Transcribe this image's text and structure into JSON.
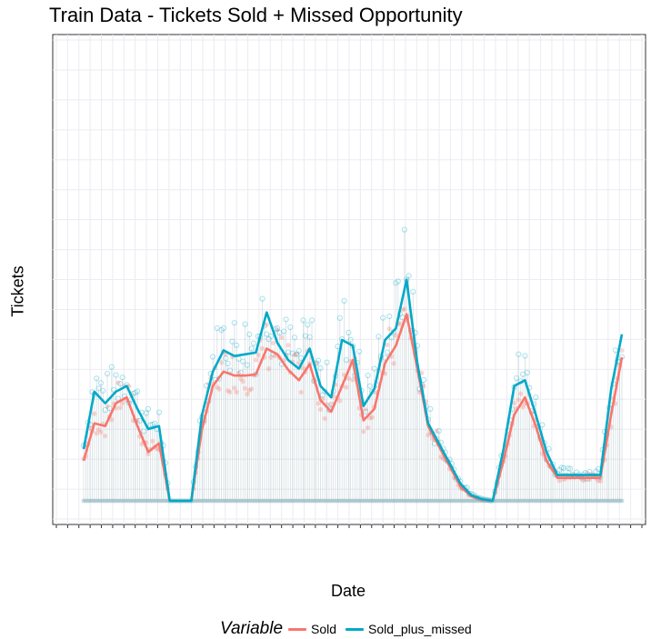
{
  "chart_data": {
    "type": "line",
    "title": "Train Data - Tickets Sold + Missed Opportunity",
    "xlabel": "Date",
    "ylabel": "Tickets",
    "x_tick_labels_shown": false,
    "y_tick_labels_shown": false,
    "grid": true,
    "legend": {
      "title": "Variable",
      "position": "bottom",
      "entries": [
        "Sold",
        "Sold_plus_missed"
      ]
    },
    "x": [
      0,
      5,
      10,
      15,
      20,
      25,
      30,
      35,
      40,
      45,
      50,
      55,
      60,
      65,
      70,
      75,
      80,
      85,
      90,
      95,
      100,
      105,
      110,
      115,
      120,
      125,
      130,
      135,
      140,
      145,
      150,
      155,
      160,
      165,
      170,
      175,
      180,
      185,
      190,
      195,
      200,
      205,
      210,
      215,
      220,
      225,
      230,
      235,
      240,
      245,
      250
    ],
    "ylim": [
      0,
      780
    ],
    "series": [
      {
        "name": "Sold",
        "color": "#F8766D",
        "values": [
          70,
          135,
          130,
          170,
          180,
          130,
          85,
          100,
          0,
          0,
          0,
          125,
          200,
          225,
          218,
          218,
          220,
          265,
          255,
          228,
          210,
          238,
          175,
          155,
          200,
          245,
          140,
          160,
          240,
          270,
          325,
          230,
          130,
          95,
          60,
          25,
          8,
          2,
          0,
          70,
          150,
          180,
          130,
          70,
          40,
          40,
          40,
          40,
          40,
          150,
          250
        ]
      },
      {
        "name": "Sold_plus_missed",
        "color": "#00A9C7",
        "values": [
          90,
          190,
          170,
          190,
          200,
          160,
          125,
          130,
          0,
          0,
          0,
          150,
          225,
          262,
          252,
          255,
          258,
          328,
          275,
          245,
          230,
          265,
          200,
          180,
          280,
          270,
          165,
          195,
          280,
          300,
          385,
          240,
          135,
          100,
          65,
          30,
          10,
          3,
          0,
          90,
          200,
          210,
          150,
          85,
          45,
          45,
          45,
          45,
          45,
          195,
          290
        ]
      }
    ],
    "scatter_note": "semi-transparent daily points for both series plus vertical segments from zero"
  }
}
